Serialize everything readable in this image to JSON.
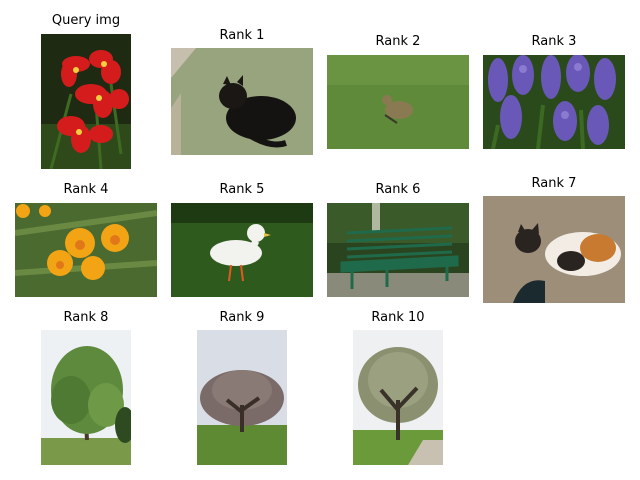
{
  "figure": {
    "panels": [
      {
        "title": "Query img",
        "subject": "red flowers"
      },
      {
        "title": "Rank 1",
        "subject": "black cat lying on carpet"
      },
      {
        "title": "Rank 2",
        "subject": "gosling on grass"
      },
      {
        "title": "Rank 3",
        "subject": "purple hyacinths"
      },
      {
        "title": "Rank 4",
        "subject": "orange poppies"
      },
      {
        "title": "Rank 5",
        "subject": "white duck on grass"
      },
      {
        "title": "Rank 6",
        "subject": "green park bench"
      },
      {
        "title": "Rank 7",
        "subject": "calico cat on carpet"
      },
      {
        "title": "Rank 8",
        "subject": "leafy tree"
      },
      {
        "title": "Rank 9",
        "subject": "bare tree on lawn"
      },
      {
        "title": "Rank 10",
        "subject": "tree beside path"
      }
    ]
  }
}
